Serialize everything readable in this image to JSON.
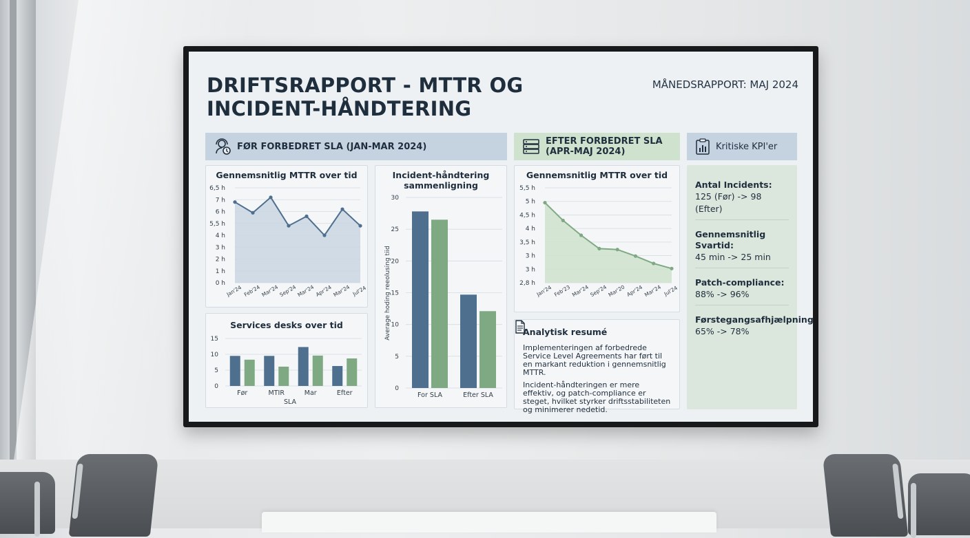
{
  "header": {
    "title": "DRIFTSRAPPORT - MTTR OG INCIDENT-HÅNDTERING",
    "subtitle": "MÅNEDSRAPPORT: MAJ 2024"
  },
  "sections": {
    "before": "FØR FORBEDRET SLA (JAN-MAR 2024)",
    "after_line1": "EFTER FORBEDRET SLA",
    "after_line2": "(APR-MAJ 2024)",
    "kpi": "Kritiske KPI'er"
  },
  "colors": {
    "blue": "#4f6f8f",
    "green": "#7ea983",
    "blue_fill": "#c9d6e3",
    "green_fill": "#cfe2cc"
  },
  "chart_data": [
    {
      "id": "mttr_before",
      "type": "area",
      "title": "Gennemsnitlig MTTR over tid",
      "yticks": [
        "0 h",
        "1 h",
        "2 h",
        "3 h",
        "4 h",
        "5,5 h",
        "6 h",
        "7 h",
        "6,5 h"
      ],
      "x": [
        "Jan'24",
        "Feb'24",
        "Mar'24",
        "Sep'24",
        "Mar'24",
        "Apr'24",
        "Mar'24",
        "Jul'24"
      ],
      "values": [
        6.8,
        5.9,
        7.2,
        4.8,
        5.6,
        4.0,
        6.2,
        4.8
      ],
      "ylim": [
        0,
        8
      ]
    },
    {
      "id": "service_desks",
      "type": "bar",
      "title": "Services desks over tid",
      "xlabel": "SLA",
      "categories": [
        "Før",
        "MTIR",
        "Mar",
        "Efter"
      ],
      "series": [
        {
          "values": [
            9.5,
            9.5,
            12.3,
            6.3
          ]
        },
        {
          "values": [
            8.3,
            6.1,
            9.6,
            8.7
          ]
        }
      ],
      "ylim": [
        0,
        15
      ],
      "yticks": [
        "0",
        "5",
        "10",
        "15"
      ]
    },
    {
      "id": "incident_compare",
      "type": "bar",
      "title": "Incident-håndtering sammenligning",
      "ylabel": "Average hoding reeolusing tiid",
      "categories": [
        "For SLA",
        "Efter SLA"
      ],
      "series": [
        {
          "values": [
            27.8,
            14.7
          ]
        },
        {
          "values": [
            26.5,
            12.1
          ]
        }
      ],
      "ylim": [
        0,
        30
      ],
      "yticks": [
        "0",
        "5",
        "10",
        "15",
        "20",
        "25",
        "30"
      ]
    },
    {
      "id": "mttr_after",
      "type": "area",
      "title": "Gennemsnitlig MTTR over tid",
      "yticks": [
        "2,8 h",
        "3 h",
        "3 h",
        "3,5 h",
        "4 h",
        "4,5 h",
        "5 h",
        "5,5 h"
      ],
      "x": [
        "Jan'24",
        "Feb'23",
        "Mar'24",
        "Sep'24",
        "Mar'20",
        "Apr'24",
        "Mar'24",
        "Jul'24"
      ],
      "values": [
        5.2,
        4.6,
        4.1,
        3.65,
        3.62,
        3.4,
        3.15,
        2.98
      ],
      "ylim": [
        2.5,
        5.7
      ]
    }
  ],
  "summary": {
    "title": "Analytisk resumé",
    "p1": "Implementeringen af forbedrede Service Level Agreements har ført til en markant reduktion i gennemsnitlig MTTR.",
    "p2": "Incident-håndteringen er mere effektiv, og patch-compliance er steget, hvilket styrker driftsstabiliteten og minimerer nedetid."
  },
  "kpis": [
    {
      "label": "Antal Incidents:",
      "value": "125 (Før) -> 98 (Efter)"
    },
    {
      "label": "Gennemsnitlig Svartid:",
      "value": "45 min -> 25 min"
    },
    {
      "label": "Patch-compliance:",
      "value": "88% -> 96%"
    },
    {
      "label": "Førstegangsafhjælpning:",
      "value": "65% -> 78%"
    }
  ]
}
